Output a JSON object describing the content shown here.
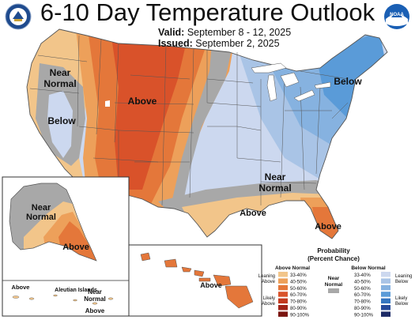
{
  "header": {
    "title": "6-10 Day Temperature Outlook",
    "valid_label": "Valid:",
    "valid_value": "September 8 - 12, 2025",
    "issued_label": "Issued:",
    "issued_value": "September 2, 2025"
  },
  "logos": {
    "left": "doc-seal-icon",
    "right": "noaa-logo-icon"
  },
  "map_labels": {
    "west_near_normal_1": "Near",
    "west_near_normal_2": "Normal",
    "west_below": "Below",
    "central_above": "Above",
    "northeast_below": "Below",
    "south_near_1": "Near",
    "south_near_2": "Normal",
    "texas_above": "Above",
    "florida_above": "Above",
    "alaska_near_1": "Near",
    "alaska_near_2": "Normal",
    "alaska_above": "Above",
    "aleutian_title": "Aleutian Islands",
    "aleutian_above_left": "Above",
    "aleutian_near_1": "Near",
    "aleutian_near_2": "Normal",
    "aleutian_above_right": "Above",
    "hawaii_above": "Above"
  },
  "legend": {
    "title_1": "Probability",
    "title_2": "(Percent Chance)",
    "above_header": "Above Normal",
    "below_header": "Below Normal",
    "near_header_1": "Near",
    "near_header_2": "Normal",
    "leaning_above_1": "Leaning",
    "leaning_above_2": "Above",
    "likely_above_1": "Likely",
    "likely_above_2": "Above",
    "leaning_below_1": "Leaning",
    "leaning_below_2": "Below",
    "likely_below_1": "Likely",
    "likely_below_2": "Below",
    "above_bins": [
      {
        "label": "33-40%",
        "color": "#f2c58a"
      },
      {
        "label": "40-50%",
        "color": "#eda05a"
      },
      {
        "label": "50-60%",
        "color": "#e4773a"
      },
      {
        "label": "60-70%",
        "color": "#d9522a"
      },
      {
        "label": "70-80%",
        "color": "#c23a1f"
      },
      {
        "label": "80-90%",
        "color": "#a02418"
      },
      {
        "label": "90-100%",
        "color": "#7a1410"
      }
    ],
    "near_color": "#a8a8a8",
    "below_bins": [
      {
        "label": "33-40%",
        "color": "#ccd8ef"
      },
      {
        "label": "40-50%",
        "color": "#a9c4e6"
      },
      {
        "label": "50-60%",
        "color": "#86b2e0"
      },
      {
        "label": "60-70%",
        "color": "#5a9bd8"
      },
      {
        "label": "70-80%",
        "color": "#3576c0"
      },
      {
        "label": "80-90%",
        "color": "#254a9a"
      },
      {
        "label": "90-100%",
        "color": "#1c2a66"
      }
    ]
  }
}
